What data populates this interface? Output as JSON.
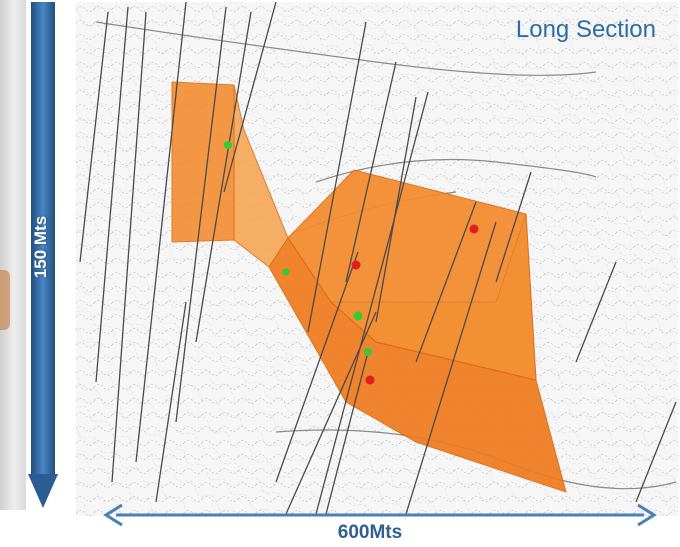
{
  "title": "Long Section",
  "vertical_scale": {
    "label": "150 Mts"
  },
  "horizontal_scale": {
    "label": "600Mts"
  },
  "colors": {
    "orebody": "#f48a2c",
    "title": "#2e6da4",
    "scale_bar": "#2e6da4",
    "drillhole": "#4a4a4a",
    "marker_green": "#33cc33",
    "marker_red": "#e02020"
  }
}
